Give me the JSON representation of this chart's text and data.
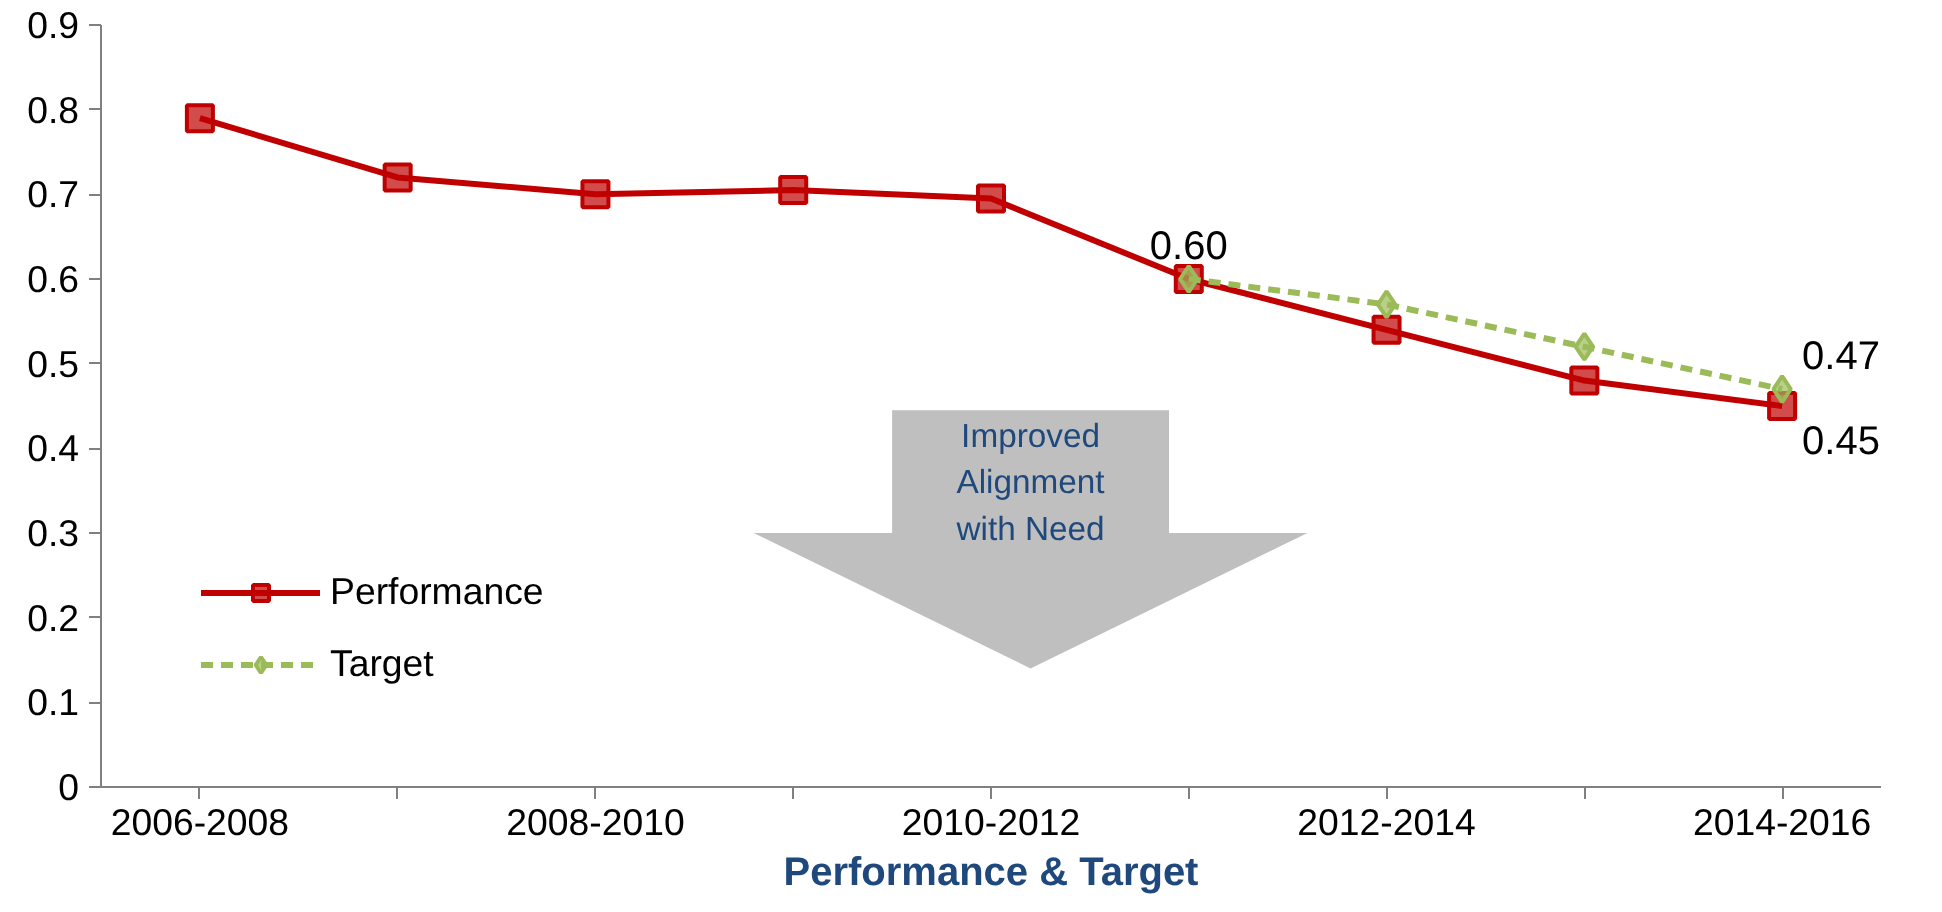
{
  "chart_data": {
    "type": "line",
    "xlabel": "Performance & Target",
    "categories": [
      "2006-2008",
      null,
      "2008-2010",
      null,
      "2010-2012",
      null,
      "2012-2014",
      null,
      "2014-2016"
    ],
    "series": [
      {
        "name": "Performance",
        "color": "#c00000",
        "marker": "square",
        "line_style": "solid",
        "values": [
          0.79,
          0.72,
          0.7,
          0.705,
          0.695,
          0.6,
          0.54,
          0.48,
          0.45
        ],
        "value_labels": [
          null,
          null,
          null,
          null,
          null,
          null,
          null,
          null,
          "0.45"
        ]
      },
      {
        "name": "Target",
        "color": "#9bbb59",
        "marker": "diamond",
        "line_style": "dashed",
        "values": [
          null,
          null,
          null,
          null,
          null,
          0.6,
          0.57,
          0.52,
          0.47
        ],
        "value_labels": [
          null,
          null,
          null,
          null,
          null,
          "0.60",
          null,
          null,
          "0.47"
        ]
      }
    ],
    "ylim": [
      0,
      0.9
    ],
    "yticks": [
      0,
      0.1,
      0.2,
      0.3,
      0.4,
      0.5,
      0.6,
      0.7,
      0.8,
      0.9
    ],
    "grid": false,
    "legend": "bottom left",
    "annotations": [
      "Improved Alignment with Need"
    ]
  }
}
